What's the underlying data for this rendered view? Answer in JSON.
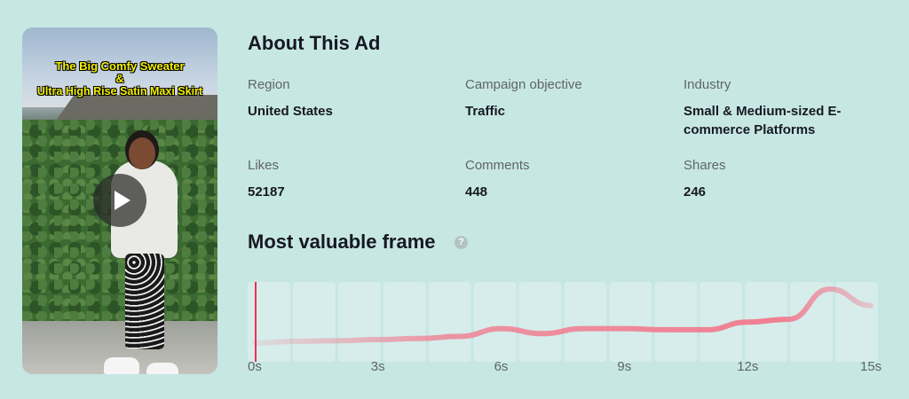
{
  "video": {
    "caption_line1": "The  Big Comfy Sweater",
    "caption_line2": "&",
    "caption_line3": "Ultra High Rise Satin Maxi Skirt",
    "play_icon": "play-icon"
  },
  "about": {
    "title": "About This Ad",
    "region_label": "Region",
    "region_value": "United States",
    "objective_label": "Campaign objective",
    "objective_value": "Traffic",
    "industry_label": "Industry",
    "industry_value": "Small & Medium-sized E-commerce Platforms",
    "likes_label": "Likes",
    "likes_value": "52187",
    "comments_label": "Comments",
    "comments_value": "448",
    "shares_label": "Shares",
    "shares_value": "246"
  },
  "frame": {
    "title": "Most valuable frame",
    "help_icon": "question-icon",
    "help_glyph": "?"
  },
  "colors": {
    "background": "#c7e7e3",
    "line": "#f07f92",
    "playhead": "#e8334f"
  },
  "chart_data": {
    "type": "line",
    "x_ticks": [
      "0s",
      "3s",
      "6s",
      "9s",
      "12s",
      "15s"
    ],
    "xlim": [
      0,
      15
    ],
    "x": [
      0,
      1,
      2,
      3,
      4,
      5,
      6,
      7,
      8,
      9,
      10,
      11,
      12,
      13,
      14,
      15
    ],
    "values": [
      0.02,
      0.05,
      0.06,
      0.08,
      0.1,
      0.14,
      0.28,
      0.19,
      0.28,
      0.28,
      0.26,
      0.26,
      0.4,
      0.45,
      1.0,
      0.7
    ],
    "playhead": 0,
    "segments": 14
  }
}
